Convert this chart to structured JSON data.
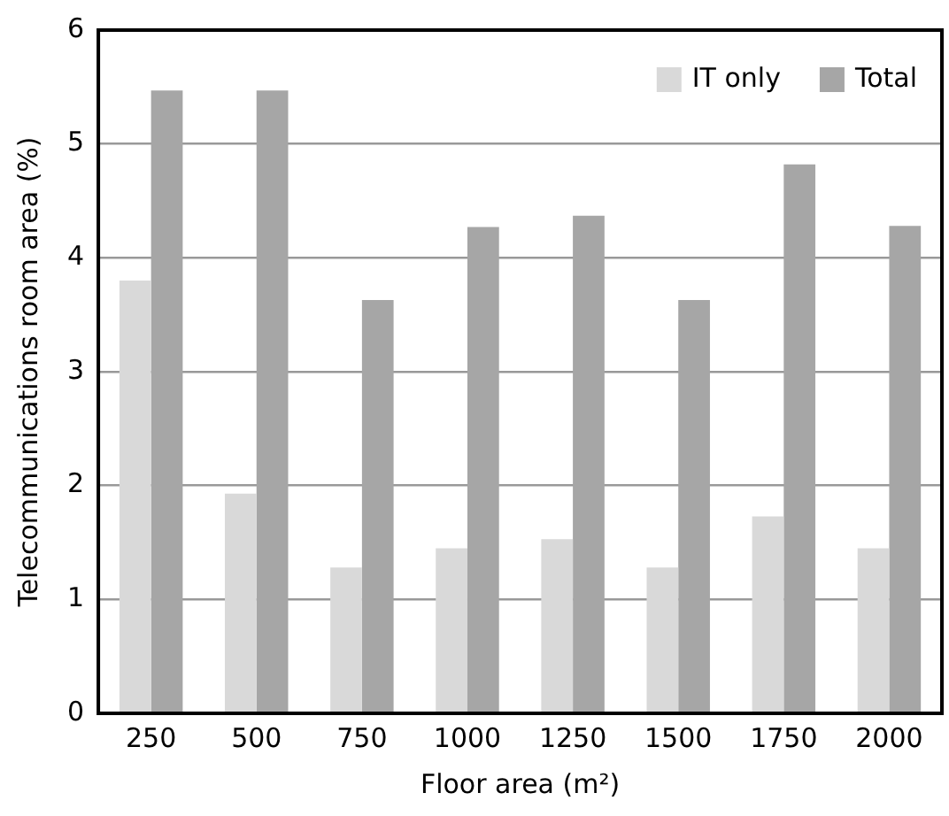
{
  "chart_data": {
    "type": "bar",
    "xlabel": "Floor area (m²)",
    "ylabel": "Telecommunications room area (%)",
    "categories": [
      "250",
      "500",
      "750",
      "1000",
      "1250",
      "1500",
      "1750",
      "2000"
    ],
    "series": [
      {
        "name": "IT only",
        "color": "#d9d9d9",
        "values": [
          3.8,
          1.93,
          1.28,
          1.45,
          1.53,
          1.28,
          1.73,
          1.45
        ]
      },
      {
        "name": "Total",
        "color": "#a6a6a6",
        "values": [
          5.47,
          5.47,
          3.63,
          4.27,
          4.37,
          3.63,
          4.82,
          4.28
        ]
      }
    ],
    "ylim": [
      0,
      6
    ],
    "yticks": [
      0,
      1,
      2,
      3,
      4,
      5,
      6
    ],
    "grid": "y",
    "legend": "top right"
  }
}
